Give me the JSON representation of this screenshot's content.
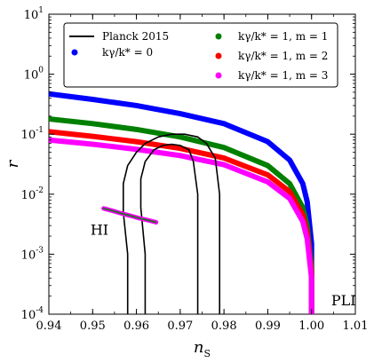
{
  "chart_data": {
    "type": "line",
    "xlabel": "n",
    "xlabel_sub": "S",
    "ylabel": "r",
    "xlim": [
      0.94,
      1.01
    ],
    "ylim": [
      0.0001,
      10
    ],
    "y_scale": "log",
    "x_ticks": [
      "0.94",
      "0.95",
      "0.96",
      "0.97",
      "0.98",
      "0.99",
      "1.00",
      "1.01"
    ],
    "y_ticks": [
      {
        "mant": "10",
        "exp": "1"
      },
      {
        "mant": "10",
        "exp": "0"
      },
      {
        "mant": "10",
        "exp": "-1"
      },
      {
        "mant": "10",
        "exp": "-2"
      },
      {
        "mant": "10",
        "exp": "-3"
      },
      {
        "mant": "10",
        "exp": "-4"
      }
    ],
    "legend_position": "top",
    "legend": [
      {
        "label": "Planck 2015",
        "marker": "line",
        "color": "#000000"
      },
      {
        "label": "kγ/k* = 0",
        "marker": "dot",
        "color": "#0000ff"
      },
      {
        "label": "kγ/k* = 1, m = 1",
        "marker": "dot",
        "color": "#008000"
      },
      {
        "label": "kγ/k* = 1, m = 2",
        "marker": "dot",
        "color": "#ff0000"
      },
      {
        "label": "kγ/k* = 1, m = 3",
        "marker": "dot",
        "color": "#ff00ff"
      }
    ],
    "series": [
      {
        "name": "kγ/k* = 0",
        "color": "#0000ff",
        "x": [
          0.94,
          0.95,
          0.96,
          0.97,
          0.98,
          0.99,
          0.995,
          0.998,
          0.999,
          1.0,
          1.0
        ],
        "y": [
          0.47,
          0.38,
          0.3,
          0.22,
          0.15,
          0.075,
          0.037,
          0.015,
          0.0075,
          0.0015,
          0.0001
        ]
      },
      {
        "name": "kγ/k* = 1, m = 1",
        "color": "#008000",
        "x": [
          0.94,
          0.95,
          0.96,
          0.97,
          0.98,
          0.99,
          0.995,
          0.998,
          0.999,
          1.0,
          1.0
        ],
        "y": [
          0.18,
          0.15,
          0.12,
          0.09,
          0.06,
          0.03,
          0.015,
          0.006,
          0.003,
          0.0006,
          0.0001
        ]
      },
      {
        "name": "kγ/k* = 1, m = 2",
        "color": "#ff0000",
        "x": [
          0.94,
          0.95,
          0.96,
          0.97,
          0.98,
          0.99,
          0.995,
          0.998,
          0.999,
          1.0,
          1.0
        ],
        "y": [
          0.11,
          0.092,
          0.075,
          0.058,
          0.04,
          0.021,
          0.011,
          0.0045,
          0.0023,
          0.0005,
          0.0001
        ]
      },
      {
        "name": "kγ/k* = 1, m = 3",
        "color": "#ff00ff",
        "x": [
          0.94,
          0.95,
          0.96,
          0.97,
          0.98,
          0.99,
          0.995,
          0.998,
          0.999,
          1.0,
          1.0
        ],
        "y": [
          0.08,
          0.068,
          0.056,
          0.044,
          0.031,
          0.016,
          0.0085,
          0.0035,
          0.0018,
          0.0004,
          0.0001
        ]
      }
    ],
    "hi_segment": {
      "x": [
        0.9525,
        0.9545,
        0.9565,
        0.9585,
        0.9605,
        0.9625,
        0.9645
      ],
      "y": [
        0.0058,
        0.0053,
        0.0048,
        0.0044,
        0.004,
        0.0037,
        0.0034
      ]
    },
    "planck_contours": [
      {
        "level": "outer",
        "x": [
          0.958,
          0.958,
          0.957,
          0.957,
          0.958,
          0.96,
          0.962,
          0.965,
          0.968,
          0.971,
          0.974,
          0.976,
          0.978,
          0.979,
          0.979,
          0.979
        ],
        "y": [
          0.0001,
          0.001,
          0.005,
          0.015,
          0.03,
          0.05,
          0.07,
          0.09,
          0.1,
          0.1,
          0.09,
          0.07,
          0.04,
          0.01,
          0.002,
          0.0001
        ]
      },
      {
        "level": "inner",
        "x": [
          0.962,
          0.962,
          0.961,
          0.961,
          0.962,
          0.964,
          0.966,
          0.968,
          0.97,
          0.972,
          0.973,
          0.974,
          0.974,
          0.974
        ],
        "y": [
          0.0001,
          0.001,
          0.006,
          0.018,
          0.035,
          0.055,
          0.065,
          0.068,
          0.065,
          0.055,
          0.035,
          0.01,
          0.002,
          0.0001
        ]
      }
    ],
    "annotations": [
      {
        "text": "HI",
        "x": 0.9495,
        "y": 0.0021
      },
      {
        "text": "PLI",
        "x": 1.0045,
        "y": 0.00014
      }
    ]
  }
}
